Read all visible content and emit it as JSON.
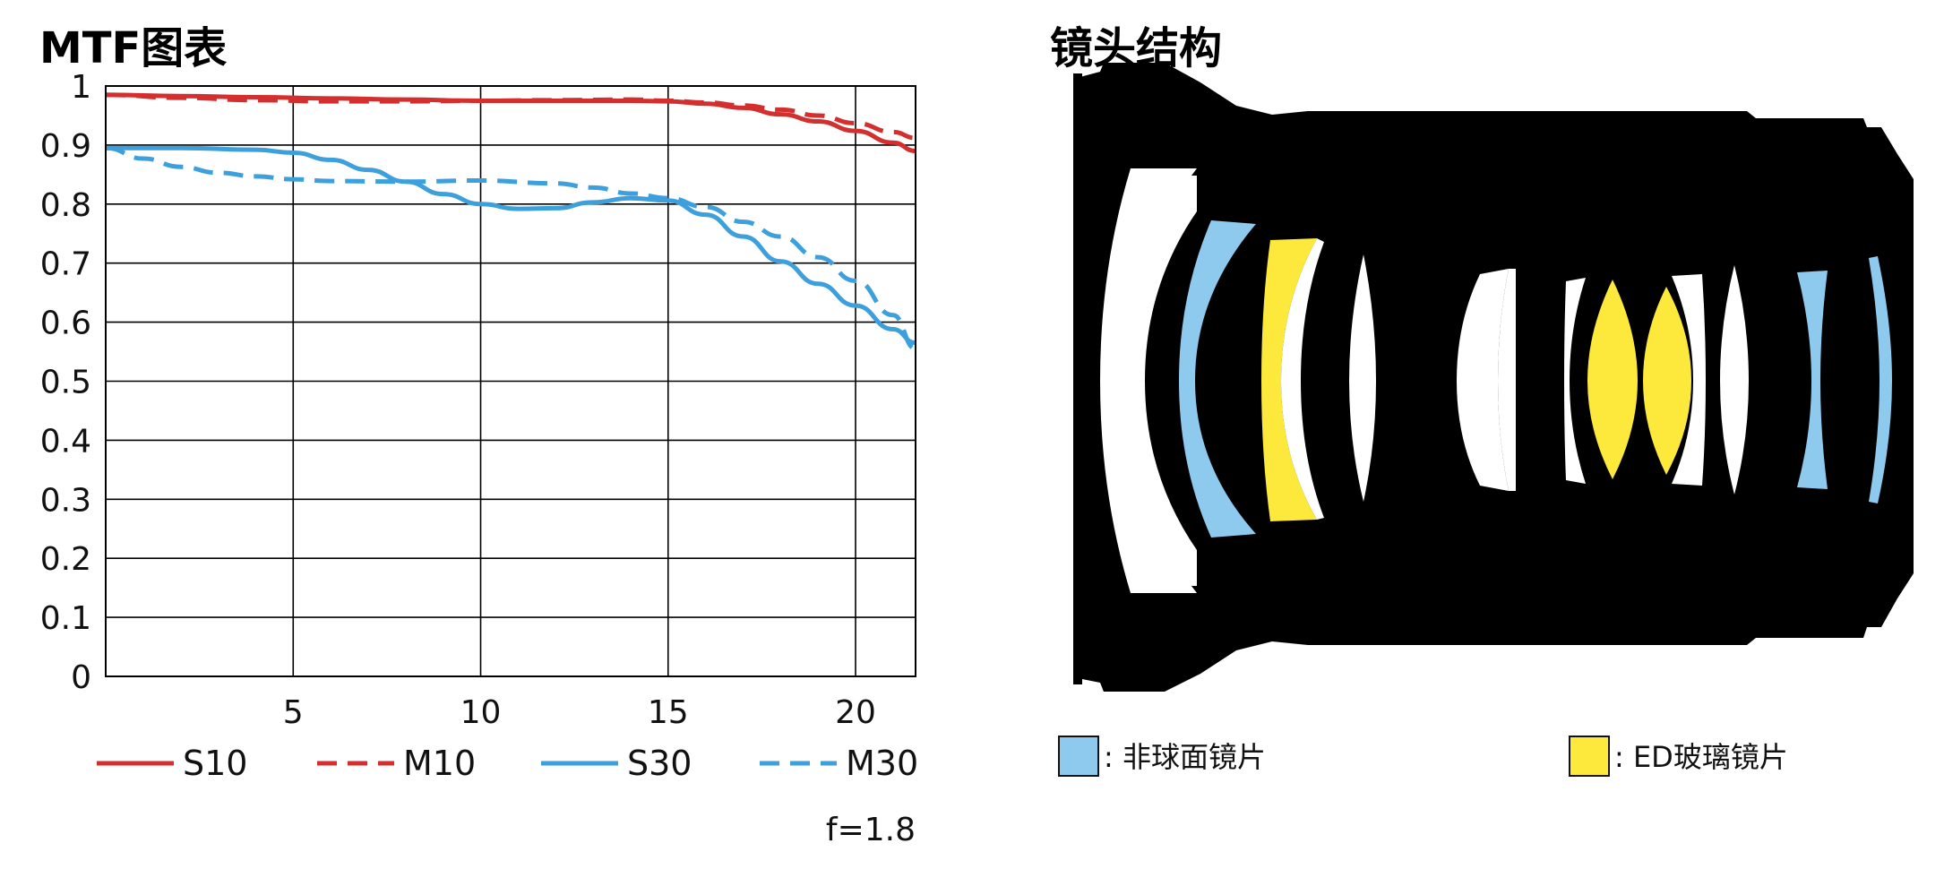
{
  "mtf": {
    "title": "MTF图表",
    "note": "f=1.8"
  },
  "lens": {
    "title": "镜头结构",
    "legend": [
      {
        "label": ": 非球面镜片",
        "color": "#8ecaee",
        "icon": "aspherical-swatch"
      },
      {
        "label": ": ED玻璃镜片",
        "color": "#fde93c",
        "icon": "ed-glass-swatch"
      }
    ],
    "colors": {
      "body": "#000000",
      "glass": "#ffffff",
      "aspherical": "#8ecaee",
      "ed": "#fde93c"
    }
  },
  "chart_data": {
    "type": "line",
    "title": "MTF图表",
    "xlabel": "",
    "ylabel": "",
    "xlim": [
      0,
      21.6
    ],
    "ylim": [
      0,
      1
    ],
    "xticks": [
      5,
      10,
      15,
      20
    ],
    "yticks": [
      0,
      0.1,
      0.2,
      0.3,
      0.4,
      0.5,
      0.6,
      0.7,
      0.8,
      0.9,
      1
    ],
    "ytick_labels": [
      "0",
      "0.1",
      "0.2",
      "0.3",
      "0.4",
      "0.5",
      "0.6",
      "0.7",
      "0.8",
      "0.9",
      "1"
    ],
    "grid": true,
    "legend_position": "bottom",
    "series": [
      {
        "name": "S10",
        "color": "#d42f2f",
        "dash": false,
        "x": [
          0,
          2,
          4,
          6,
          8,
          10,
          12,
          14,
          15,
          16,
          17,
          18,
          19,
          20,
          21,
          21.6
        ],
        "y": [
          0.985,
          0.983,
          0.981,
          0.979,
          0.977,
          0.975,
          0.975,
          0.975,
          0.974,
          0.97,
          0.963,
          0.952,
          0.94,
          0.924,
          0.904,
          0.89
        ]
      },
      {
        "name": "M10",
        "color": "#d42f2f",
        "dash": true,
        "x": [
          0,
          2,
          4,
          6,
          8,
          10,
          12,
          14,
          15,
          16,
          17,
          18,
          19,
          20,
          21,
          21.6
        ],
        "y": [
          0.985,
          0.98,
          0.976,
          0.974,
          0.974,
          0.975,
          0.976,
          0.977,
          0.975,
          0.972,
          0.967,
          0.96,
          0.95,
          0.937,
          0.922,
          0.912
        ]
      },
      {
        "name": "S30",
        "color": "#3da0dc",
        "dash": false,
        "x": [
          0,
          2,
          4,
          5,
          6,
          7,
          8,
          9,
          10,
          11,
          12,
          13,
          14,
          15,
          16,
          17,
          18,
          19,
          20,
          21,
          21.6
        ],
        "y": [
          0.895,
          0.895,
          0.892,
          0.887,
          0.875,
          0.858,
          0.838,
          0.817,
          0.8,
          0.792,
          0.793,
          0.803,
          0.81,
          0.806,
          0.782,
          0.745,
          0.703,
          0.665,
          0.628,
          0.588,
          0.565
        ]
      },
      {
        "name": "M30",
        "color": "#3da0dc",
        "dash": true,
        "x": [
          0,
          1,
          2,
          3,
          4,
          5,
          6,
          8,
          10,
          12,
          13,
          14,
          15,
          16,
          17,
          18,
          19,
          20,
          21,
          21.6
        ],
        "y": [
          0.895,
          0.877,
          0.863,
          0.853,
          0.847,
          0.842,
          0.839,
          0.838,
          0.84,
          0.835,
          0.828,
          0.818,
          0.81,
          0.795,
          0.77,
          0.745,
          0.71,
          0.67,
          0.612,
          0.555
        ]
      }
    ]
  }
}
